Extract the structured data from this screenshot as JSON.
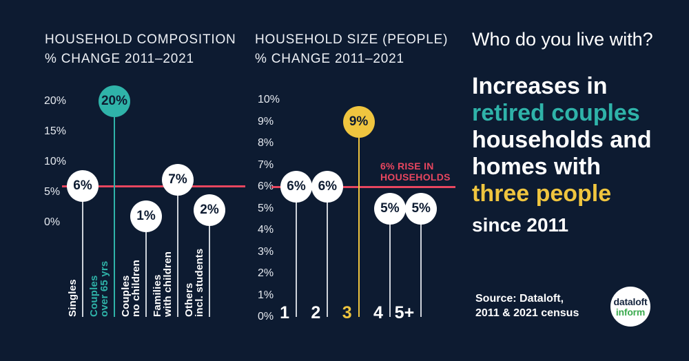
{
  "colors": {
    "background": "#0d1b31",
    "white": "#ffffff",
    "offwhite": "#eef1f6",
    "teal": "#2fb3a9",
    "yellow": "#efc53f",
    "red": "#e8465f",
    "stem": "#cfd4db",
    "navy_text": "#0d1b31",
    "green": "#3cab4f"
  },
  "chart_data": [
    {
      "id": "household-composition",
      "type": "lollipop",
      "title": "HOUSEHOLD COMPOSITION % CHANGE 2011–2021",
      "title_lines": [
        "HOUSEHOLD COMPOSITION",
        "% CHANGE 2011–2021"
      ],
      "categories": [
        "Singles",
        "Couples over 65 yrs",
        "Couples no children",
        "Families with children",
        "Others incl. students"
      ],
      "category_lines": [
        [
          "Singles"
        ],
        [
          "Couples",
          "over 65 yrs"
        ],
        [
          "Couples",
          "no children"
        ],
        [
          "Families",
          "with children"
        ],
        [
          "Others",
          "incl. students"
        ]
      ],
      "values": [
        6,
        20,
        1,
        7,
        2
      ],
      "point_labels": [
        "6%",
        "20%",
        "1%",
        "7%",
        "2%"
      ],
      "highlight_index": 1,
      "highlight_color": "#2fb3a9",
      "ylim": [
        0,
        20
      ],
      "ytick_step": 5,
      "yticks": [
        {
          "v": 20,
          "label": "20%"
        },
        {
          "v": 15,
          "label": "15%"
        },
        {
          "v": 10,
          "label": "10%"
        },
        {
          "v": 5,
          "label": "5%"
        },
        {
          "v": 0,
          "label": "0%"
        }
      ],
      "reference_line": {
        "value": 6,
        "label_lines": []
      }
    },
    {
      "id": "household-size",
      "type": "lollipop",
      "title": "HOUSEHOLD SIZE (PEOPLE) % CHANGE 2011–2021",
      "title_lines": [
        "HOUSEHOLD SIZE (PEOPLE)",
        "% CHANGE 2011–2021"
      ],
      "categories": [
        "1",
        "2",
        "3",
        "4",
        "5+"
      ],
      "values": [
        6,
        6,
        9,
        5,
        5
      ],
      "point_labels": [
        "6%",
        "6%",
        "9%",
        "5%",
        "5%"
      ],
      "highlight_index": 2,
      "highlight_color": "#efc53f",
      "ylim": [
        0,
        10
      ],
      "ytick_step": 1,
      "yticks": [
        {
          "v": 10,
          "label": "10%"
        },
        {
          "v": 9,
          "label": "9%"
        },
        {
          "v": 8,
          "label": "8%"
        },
        {
          "v": 7,
          "label": "7%"
        },
        {
          "v": 6,
          "label": "6%"
        },
        {
          "v": 5,
          "label": "5%"
        },
        {
          "v": 4,
          "label": "4%"
        },
        {
          "v": 3,
          "label": "3%"
        },
        {
          "v": 2,
          "label": "2%"
        },
        {
          "v": 1,
          "label": "1%"
        },
        {
          "v": 0,
          "label": "0%"
        }
      ],
      "reference_line": {
        "value": 6,
        "label_lines": [
          "6% RISE IN",
          "HOUSEHOLDS"
        ]
      }
    }
  ],
  "panel": {
    "headline": "Who do you live with?",
    "lines": [
      {
        "text": "Increases in",
        "color": "white",
        "small": false
      },
      {
        "text": "retired couples",
        "color": "teal",
        "small": false
      },
      {
        "text": "households and",
        "color": "white",
        "small": false
      },
      {
        "text": "homes with",
        "color": "white",
        "small": false
      },
      {
        "text": "three people",
        "color": "yellow",
        "small": false
      },
      {
        "text": "since 2011",
        "color": "white",
        "small": true
      }
    ],
    "source_line1": "Source: Dataloft,",
    "source_line2": "2011 & 2021 census",
    "logo": {
      "line1": "dataloft",
      "line2": "inform"
    }
  }
}
